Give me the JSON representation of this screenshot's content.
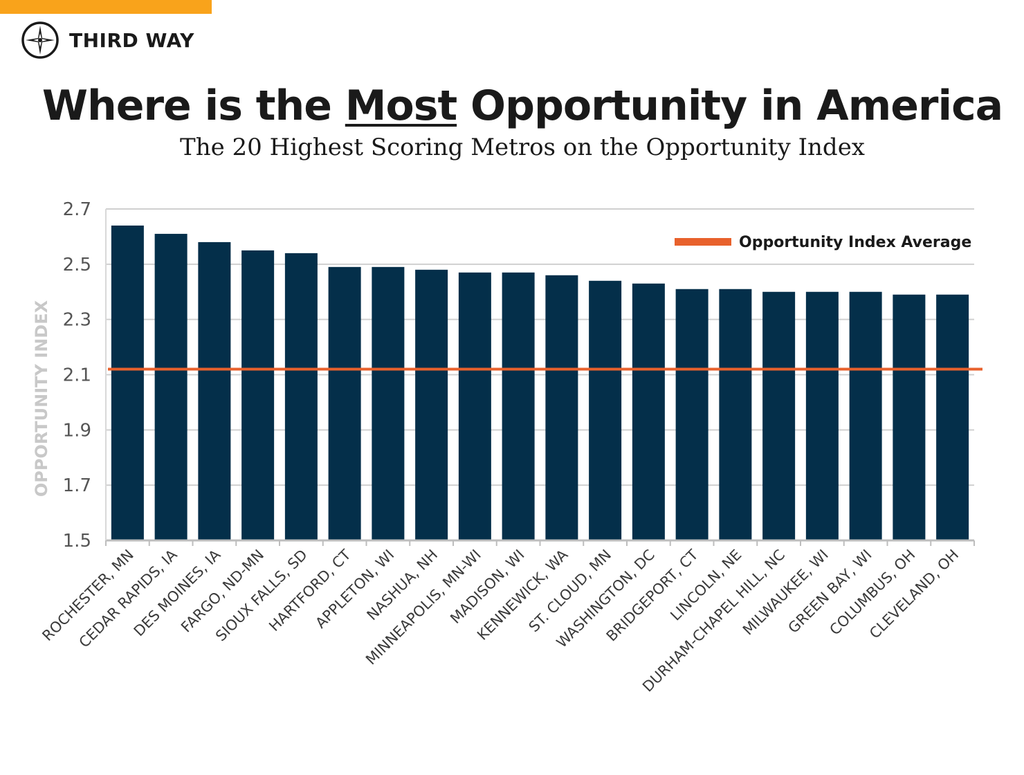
{
  "brand": {
    "name": "THIRD WAY",
    "accent_color": "#f9a31b",
    "icon": "compass-star-icon"
  },
  "header": {
    "title_before": "Where is the ",
    "title_emphasis": "Most",
    "title_after": " Opportunity in America",
    "subtitle": "The 20 Highest Scoring Metros on the Opportunity Index"
  },
  "colors": {
    "bar": "#042f4a",
    "average_line": "#e8612c",
    "grid": "#d0d0d0"
  },
  "chart_data": {
    "type": "bar",
    "title": "Where is the Most Opportunity in America",
    "subtitle": "The 20 Highest Scoring Metros on the Opportunity Index",
    "xlabel": "",
    "ylabel": "OPPORTUNITY INDEX",
    "ylim": [
      1.5,
      2.7
    ],
    "yticks": [
      "1.5",
      "1.7",
      "1.9",
      "2.1",
      "2.3",
      "2.5",
      "2.7"
    ],
    "grid": true,
    "categories": [
      "ROCHESTER, MN",
      "CEDAR RAPIDS, IA",
      "DES MOINES, IA",
      "FARGO, ND-MN",
      "SIOUX FALLS, SD",
      "HARTFORD, CT",
      "APPLETON, WI",
      "NASHUA, NH",
      "MINNEAPOLIS, MN-WI",
      "MADISON, WI",
      "KENNEWICK, WA",
      "ST. CLOUD, MN",
      "WASHINGTON, DC",
      "BRIDGEPORT, CT",
      "LINCOLN, NE",
      "DURHAM-CHAPEL HILL, NC",
      "MILWAUKEE, WI",
      "GREEN BAY, WI",
      "COLUMBUS, OH",
      "CLEVELAND, OH"
    ],
    "values": [
      2.64,
      2.61,
      2.58,
      2.55,
      2.54,
      2.49,
      2.49,
      2.48,
      2.47,
      2.47,
      2.46,
      2.44,
      2.43,
      2.41,
      2.41,
      2.4,
      2.4,
      2.4,
      2.39,
      2.39
    ],
    "average": {
      "label": "Opportunity Index Average",
      "value": 2.12
    },
    "legend": {
      "position": "top-right",
      "entries": [
        "Opportunity Index Average"
      ]
    }
  }
}
